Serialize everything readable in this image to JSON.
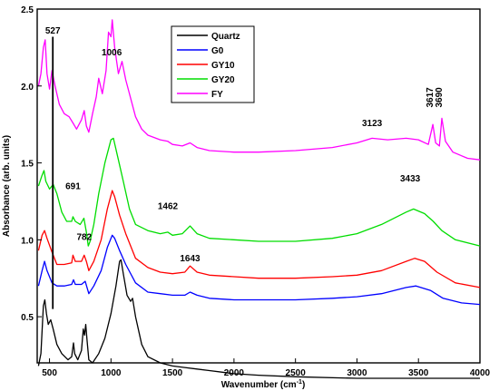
{
  "chart_data": {
    "type": "line",
    "xlabel": "Wavenumber (cm",
    "xlabel_sup": "-1",
    "xlabel_end": ")",
    "ylabel": "Absorbance (arb. units)",
    "xlim": [
      400,
      4000
    ],
    "ylim": [
      0.2,
      2.5
    ],
    "x_ticks": [
      500,
      1000,
      1500,
      2000,
      2500,
      3000,
      3500,
      4000
    ],
    "y_ticks": [
      0.5,
      1.0,
      1.5,
      2.0,
      2.5
    ],
    "x_tick_labels": [
      "500",
      "1000",
      "1500",
      "2000",
      "2500",
      "3000",
      "3500",
      "4000"
    ],
    "y_tick_labels": [
      "0.5",
      "1.0",
      "1.5",
      "2.0",
      "2.5"
    ],
    "grid": false,
    "legend_position": "top-center",
    "series": [
      {
        "name": "Quartz",
        "color": "#000000",
        "points": [
          [
            410,
            0.18
          ],
          [
            430,
            0.26
          ],
          [
            450,
            0.57
          ],
          [
            462,
            0.61
          ],
          [
            475,
            0.52
          ],
          [
            490,
            0.45
          ],
          [
            510,
            0.48
          ],
          [
            530,
            0.42
          ],
          [
            560,
            0.32
          ],
          [
            600,
            0.26
          ],
          [
            650,
            0.22
          ],
          [
            680,
            0.24
          ],
          [
            695,
            0.33
          ],
          [
            705,
            0.26
          ],
          [
            730,
            0.22
          ],
          [
            760,
            0.28
          ],
          [
            775,
            0.42
          ],
          [
            785,
            0.38
          ],
          [
            795,
            0.45
          ],
          [
            805,
            0.35
          ],
          [
            820,
            0.22
          ],
          [
            850,
            0.2
          ],
          [
            900,
            0.26
          ],
          [
            950,
            0.36
          ],
          [
            1000,
            0.52
          ],
          [
            1040,
            0.7
          ],
          [
            1070,
            0.86
          ],
          [
            1082,
            0.87
          ],
          [
            1100,
            0.78
          ],
          [
            1130,
            0.64
          ],
          [
            1160,
            0.6
          ],
          [
            1175,
            0.62
          ],
          [
            1200,
            0.5
          ],
          [
            1250,
            0.32
          ],
          [
            1300,
            0.24
          ],
          [
            1400,
            0.2
          ],
          [
            1500,
            0.18
          ],
          [
            1600,
            0.17
          ],
          [
            1700,
            0.16
          ],
          [
            1800,
            0.15
          ],
          [
            1900,
            0.14
          ],
          [
            2000,
            0.13
          ],
          [
            2200,
            0.12
          ],
          [
            2500,
            0.11
          ],
          [
            3000,
            0.1
          ],
          [
            3500,
            0.1
          ],
          [
            4000,
            0.1
          ]
        ]
      },
      {
        "name": "G0",
        "color": "#0000ff",
        "points": [
          [
            410,
            0.7
          ],
          [
            440,
            0.8
          ],
          [
            460,
            0.86
          ],
          [
            480,
            0.8
          ],
          [
            520,
            0.72
          ],
          [
            560,
            0.7
          ],
          [
            620,
            0.7
          ],
          [
            680,
            0.71
          ],
          [
            695,
            0.74
          ],
          [
            710,
            0.71
          ],
          [
            760,
            0.71
          ],
          [
            790,
            0.73
          ],
          [
            820,
            0.65
          ],
          [
            860,
            0.7
          ],
          [
            920,
            0.8
          ],
          [
            970,
            0.95
          ],
          [
            1010,
            1.03
          ],
          [
            1030,
            1.01
          ],
          [
            1070,
            0.93
          ],
          [
            1120,
            0.84
          ],
          [
            1200,
            0.72
          ],
          [
            1300,
            0.66
          ],
          [
            1400,
            0.65
          ],
          [
            1500,
            0.64
          ],
          [
            1600,
            0.64
          ],
          [
            1643,
            0.66
          ],
          [
            1700,
            0.64
          ],
          [
            1800,
            0.62
          ],
          [
            2000,
            0.61
          ],
          [
            2200,
            0.61
          ],
          [
            2500,
            0.61
          ],
          [
            2800,
            0.62
          ],
          [
            3000,
            0.63
          ],
          [
            3200,
            0.65
          ],
          [
            3400,
            0.69
          ],
          [
            3480,
            0.7
          ],
          [
            3600,
            0.67
          ],
          [
            3700,
            0.62
          ],
          [
            3850,
            0.59
          ],
          [
            4000,
            0.58
          ]
        ]
      },
      {
        "name": "GY10",
        "color": "#ff0000",
        "points": [
          [
            410,
            0.93
          ],
          [
            440,
            1.03
          ],
          [
            460,
            1.06
          ],
          [
            480,
            1.01
          ],
          [
            520,
            0.92
          ],
          [
            560,
            0.84
          ],
          [
            620,
            0.84
          ],
          [
            680,
            0.85
          ],
          [
            691,
            0.9
          ],
          [
            710,
            0.86
          ],
          [
            760,
            0.86
          ],
          [
            782,
            0.9
          ],
          [
            800,
            0.86
          ],
          [
            820,
            0.8
          ],
          [
            860,
            0.86
          ],
          [
            920,
            1.0
          ],
          [
            970,
            1.2
          ],
          [
            1010,
            1.32
          ],
          [
            1030,
            1.28
          ],
          [
            1070,
            1.16
          ],
          [
            1120,
            1.04
          ],
          [
            1200,
            0.88
          ],
          [
            1300,
            0.82
          ],
          [
            1400,
            0.79
          ],
          [
            1500,
            0.78
          ],
          [
            1600,
            0.79
          ],
          [
            1643,
            0.83
          ],
          [
            1700,
            0.79
          ],
          [
            1800,
            0.77
          ],
          [
            2000,
            0.76
          ],
          [
            2200,
            0.75
          ],
          [
            2500,
            0.75
          ],
          [
            2800,
            0.76
          ],
          [
            3000,
            0.77
          ],
          [
            3200,
            0.8
          ],
          [
            3400,
            0.86
          ],
          [
            3470,
            0.88
          ],
          [
            3550,
            0.86
          ],
          [
            3650,
            0.79
          ],
          [
            3800,
            0.72
          ],
          [
            4000,
            0.69
          ]
        ]
      },
      {
        "name": "GY20",
        "color": "#00dd00",
        "points": [
          [
            410,
            1.35
          ],
          [
            440,
            1.42
          ],
          [
            455,
            1.45
          ],
          [
            470,
            1.38
          ],
          [
            500,
            1.33
          ],
          [
            530,
            1.36
          ],
          [
            560,
            1.3
          ],
          [
            600,
            1.18
          ],
          [
            640,
            1.12
          ],
          [
            680,
            1.12
          ],
          [
            691,
            1.15
          ],
          [
            710,
            1.12
          ],
          [
            750,
            1.1
          ],
          [
            780,
            1.14
          ],
          [
            800,
            1.05
          ],
          [
            815,
            0.96
          ],
          [
            830,
            0.99
          ],
          [
            860,
            1.1
          ],
          [
            900,
            1.3
          ],
          [
            950,
            1.5
          ],
          [
            1000,
            1.65
          ],
          [
            1020,
            1.66
          ],
          [
            1060,
            1.52
          ],
          [
            1100,
            1.38
          ],
          [
            1150,
            1.2
          ],
          [
            1200,
            1.1
          ],
          [
            1300,
            1.06
          ],
          [
            1400,
            1.04
          ],
          [
            1462,
            1.05
          ],
          [
            1500,
            1.03
          ],
          [
            1580,
            1.04
          ],
          [
            1643,
            1.09
          ],
          [
            1700,
            1.04
          ],
          [
            1800,
            1.01
          ],
          [
            2000,
            1.0
          ],
          [
            2200,
            0.99
          ],
          [
            2500,
            0.99
          ],
          [
            2800,
            1.01
          ],
          [
            3000,
            1.04
          ],
          [
            3200,
            1.1
          ],
          [
            3400,
            1.18
          ],
          [
            3460,
            1.2
          ],
          [
            3550,
            1.17
          ],
          [
            3620,
            1.12
          ],
          [
            3690,
            1.06
          ],
          [
            3800,
            1.0
          ],
          [
            4000,
            0.96
          ]
        ]
      },
      {
        "name": "FY",
        "color": "#ff00ff",
        "points": [
          [
            410,
            2.0
          ],
          [
            430,
            2.08
          ],
          [
            450,
            2.25
          ],
          [
            465,
            2.3
          ],
          [
            480,
            2.08
          ],
          [
            500,
            1.98
          ],
          [
            520,
            2.1
          ],
          [
            545,
            2.0
          ],
          [
            580,
            1.88
          ],
          [
            620,
            1.82
          ],
          [
            660,
            1.8
          ],
          [
            691,
            1.76
          ],
          [
            720,
            1.72
          ],
          [
            760,
            1.78
          ],
          [
            782,
            1.84
          ],
          [
            800,
            1.74
          ],
          [
            820,
            1.7
          ],
          [
            850,
            1.82
          ],
          [
            880,
            1.93
          ],
          [
            900,
            2.05
          ],
          [
            930,
            1.95
          ],
          [
            960,
            2.1
          ],
          [
            980,
            2.35
          ],
          [
            1000,
            2.32
          ],
          [
            1010,
            2.43
          ],
          [
            1030,
            2.25
          ],
          [
            1060,
            2.08
          ],
          [
            1090,
            2.16
          ],
          [
            1120,
            2.04
          ],
          [
            1160,
            1.92
          ],
          [
            1200,
            1.8
          ],
          [
            1250,
            1.72
          ],
          [
            1300,
            1.68
          ],
          [
            1400,
            1.65
          ],
          [
            1462,
            1.64
          ],
          [
            1500,
            1.62
          ],
          [
            1580,
            1.61
          ],
          [
            1643,
            1.63
          ],
          [
            1700,
            1.6
          ],
          [
            1800,
            1.58
          ],
          [
            2000,
            1.57
          ],
          [
            2200,
            1.57
          ],
          [
            2500,
            1.58
          ],
          [
            2800,
            1.6
          ],
          [
            3000,
            1.63
          ],
          [
            3123,
            1.66
          ],
          [
            3250,
            1.65
          ],
          [
            3400,
            1.66
          ],
          [
            3500,
            1.65
          ],
          [
            3580,
            1.62
          ],
          [
            3617,
            1.75
          ],
          [
            3640,
            1.63
          ],
          [
            3670,
            1.61
          ],
          [
            3690,
            1.79
          ],
          [
            3720,
            1.64
          ],
          [
            3780,
            1.57
          ],
          [
            3900,
            1.53
          ],
          [
            4000,
            1.52
          ]
        ]
      }
    ],
    "annotations": [
      {
        "text": "527",
        "x": 527,
        "y": 2.34
      },
      {
        "text": "1006",
        "x": 1006,
        "y": 2.2
      },
      {
        "text": "691",
        "x": 691,
        "y": 1.33
      },
      {
        "text": "782",
        "x": 782,
        "y": 1.0
      },
      {
        "text": "1462",
        "x": 1462,
        "y": 1.2
      },
      {
        "text": "1643",
        "x": 1643,
        "y": 0.86
      },
      {
        "text": "3433",
        "x": 3433,
        "y": 1.38
      },
      {
        "text": "3123",
        "x": 3123,
        "y": 1.74
      },
      {
        "text": "3617",
        "x": 3617,
        "y": 1.86
      },
      {
        "text": "3690",
        "x": 3690,
        "y": 1.86
      }
    ]
  }
}
